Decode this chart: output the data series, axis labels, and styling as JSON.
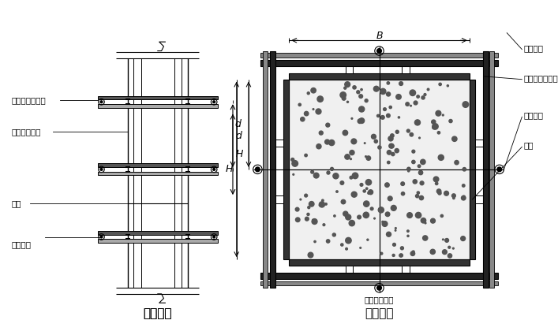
{
  "bg_color": "#ffffff",
  "line_color": "#000000",
  "title1": "柱立面图",
  "title2": "柱剖面图",
  "label_zhujin": "柱箍（圆钢管）",
  "label_zhumao": "竖愣（方木）",
  "label_mianban": "面板",
  "label_duila": "对拉螺栓",
  "label_zhujin2": "柱箍（圆钢管）",
  "label_duila_top": "对拉螺栓",
  "label_duila_mid": "对拉螺栓",
  "label_mianban2": "面板",
  "label_zhumao2": "竖愣（方木）",
  "label_B": "B",
  "label_d": "d",
  "label_H": "H"
}
